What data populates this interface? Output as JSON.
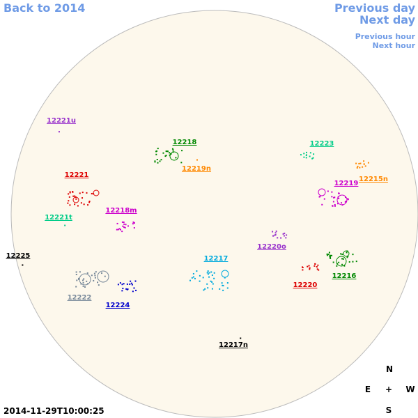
{
  "nav": {
    "back": "Back to 2014",
    "previous_day": "Previous day",
    "next_day": "Next day",
    "previous_hour": "Previous hour",
    "next_hour": "Next hour"
  },
  "regions": [
    {
      "label": "12221u",
      "color": "#9933cc"
    },
    {
      "label": "12218",
      "color": "#008800"
    },
    {
      "label": "12223",
      "color": "#00cc88"
    },
    {
      "label": "12219n",
      "color": "#ff8800"
    },
    {
      "label": "12215n",
      "color": "#ff8800"
    },
    {
      "label": "12221",
      "color": "#dd0000"
    },
    {
      "label": "12219",
      "color": "#cc00cc"
    },
    {
      "label": "12218m",
      "color": "#cc00cc"
    },
    {
      "label": "12221t",
      "color": "#00cc88"
    },
    {
      "label": "12225",
      "color": "#000000"
    },
    {
      "label": "12220o",
      "color": "#9933cc"
    },
    {
      "label": "12217",
      "color": "#00aadd"
    },
    {
      "label": "12216",
      "color": "#008800"
    },
    {
      "label": "12220",
      "color": "#dd0000"
    },
    {
      "label": "12222",
      "color": "#778899"
    },
    {
      "label": "12224",
      "color": "#0000cc"
    },
    {
      "label": "12217n",
      "color": "#000000"
    }
  ],
  "compass": {
    "north": "N",
    "east": "E",
    "center": "+",
    "west": "W",
    "south": "S"
  },
  "timestamp": "2014-11-29T10:00:25"
}
